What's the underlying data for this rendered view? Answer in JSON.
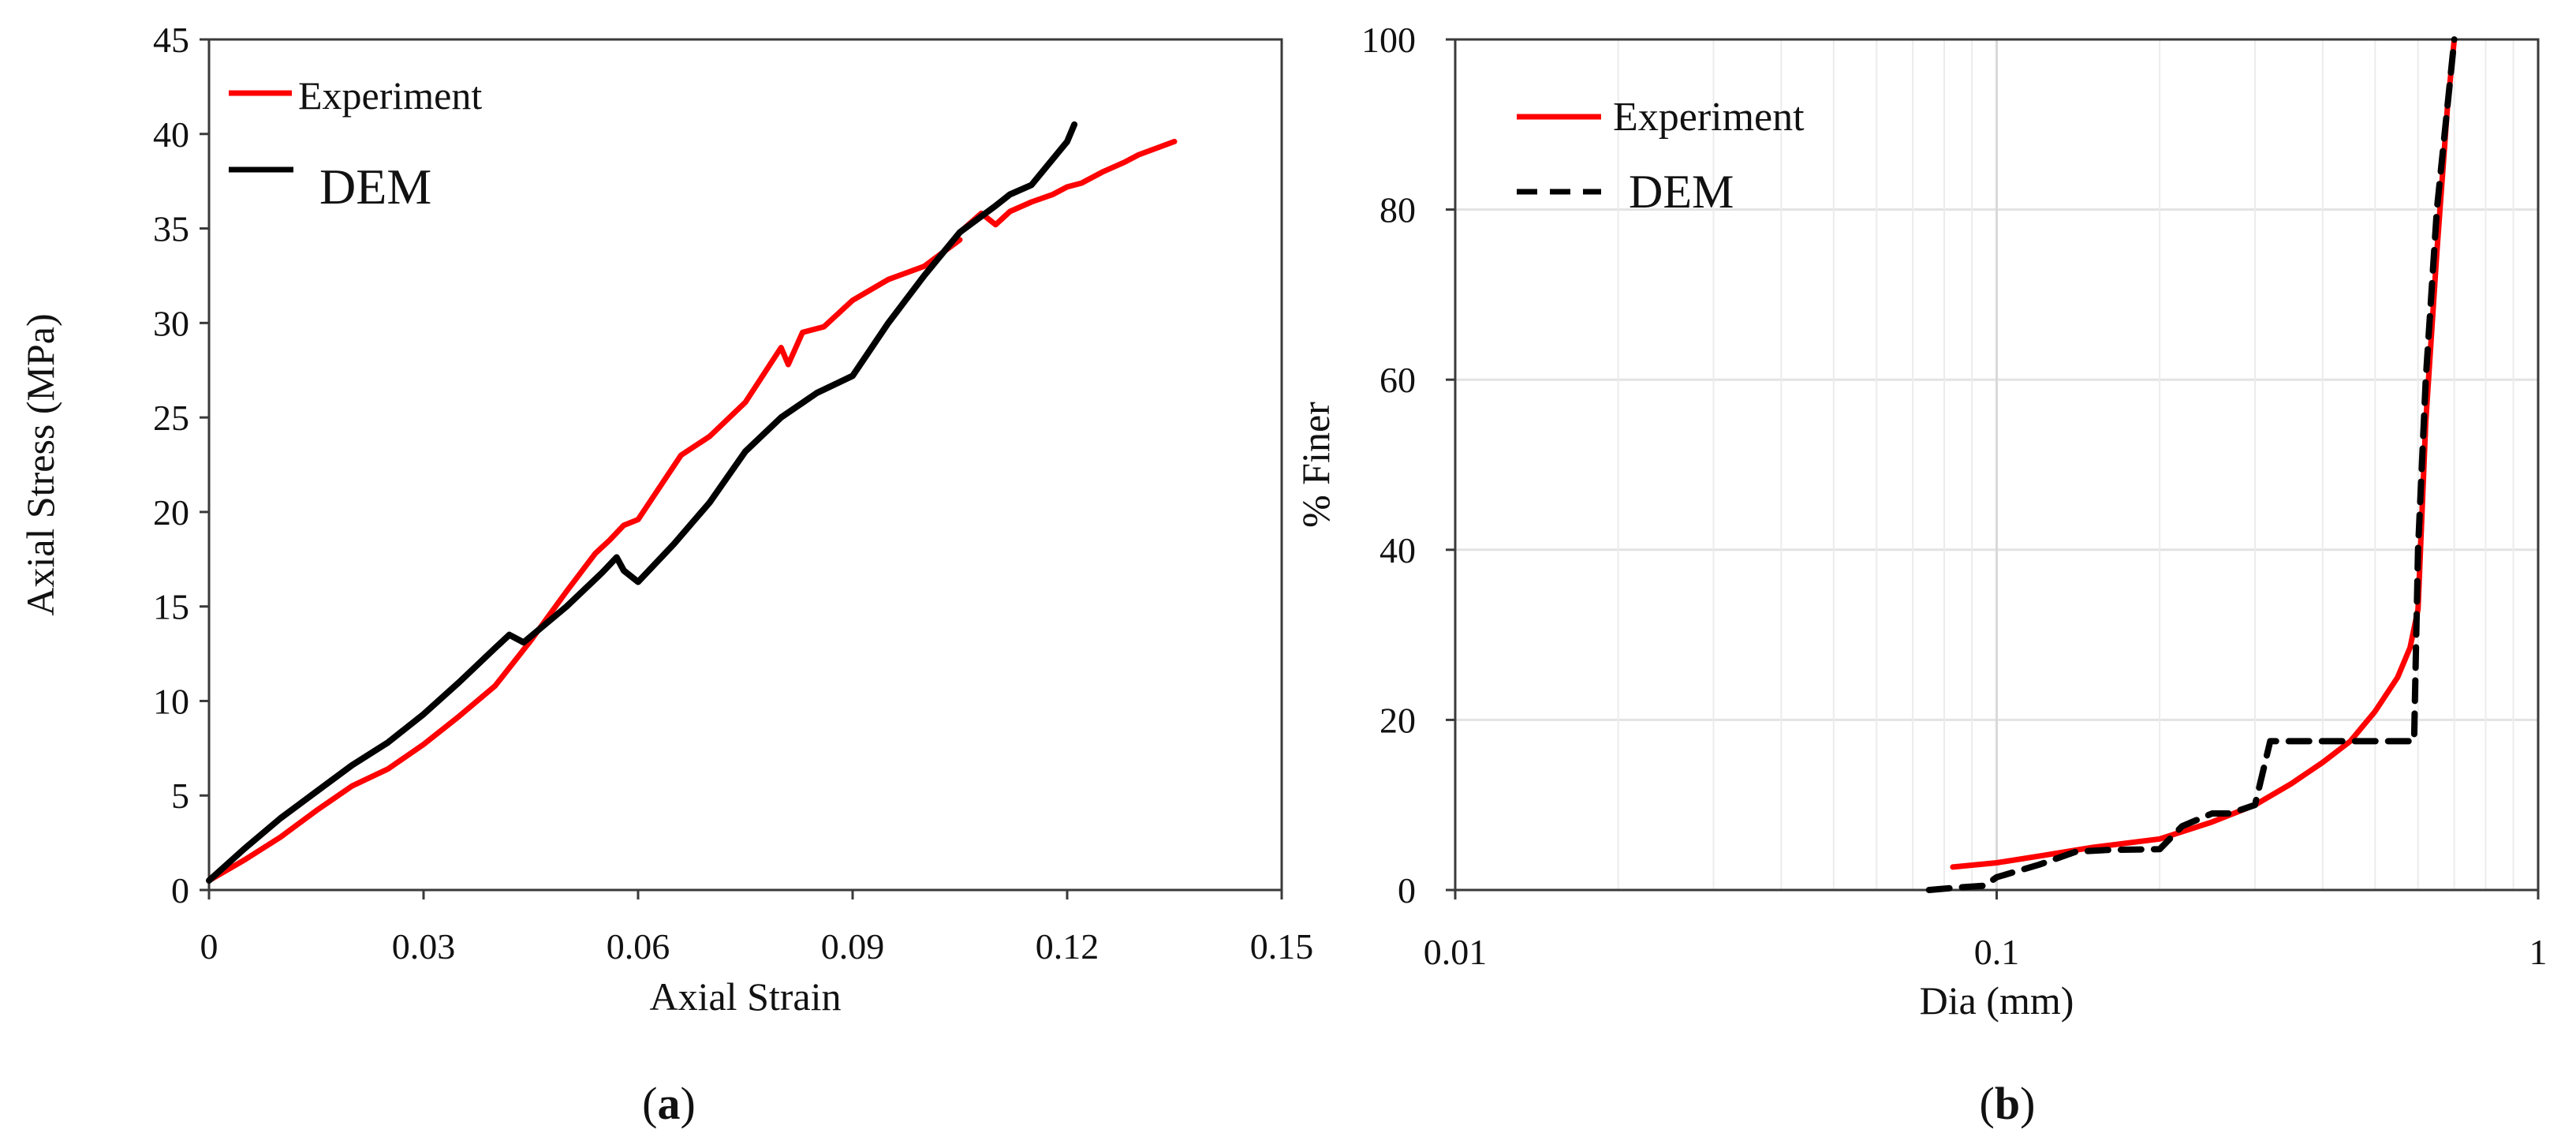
{
  "chart_data": [
    {
      "id": "a",
      "type": "line",
      "panel_label": "a",
      "xlabel": "Axial Strain",
      "ylabel": "Axial Stress (MPa)",
      "xlim": [
        0,
        0.15
      ],
      "ylim": [
        0,
        45
      ],
      "xticks": [
        0,
        0.03,
        0.06,
        0.09,
        0.12,
        0.15
      ],
      "xtick_labels": [
        "0",
        "0.03",
        "0.06",
        "0.09",
        "0.12",
        "0.15"
      ],
      "yticks": [
        0,
        5,
        10,
        15,
        20,
        25,
        30,
        35,
        40,
        45
      ],
      "ytick_labels": [
        "0",
        "5",
        "10",
        "15",
        "20",
        "25",
        "30",
        "35",
        "40",
        "45"
      ],
      "grid": false,
      "legend_position": "top-left",
      "series": [
        {
          "name": "Experiment",
          "color": "#ff0000",
          "style": "solid",
          "x": [
            0,
            0.005,
            0.01,
            0.015,
            0.02,
            0.025,
            0.03,
            0.035,
            0.04,
            0.045,
            0.05,
            0.054,
            0.056,
            0.058,
            0.06,
            0.063,
            0.066,
            0.07,
            0.075,
            0.08,
            0.081,
            0.083,
            0.086,
            0.09,
            0.095,
            0.1,
            0.105
          ],
          "y": [
            0.5,
            1.6,
            2.8,
            4.2,
            5.5,
            6.4,
            7.7,
            9.2,
            10.8,
            13.2,
            15.8,
            17.8,
            18.5,
            19.3,
            19.6,
            21.3,
            23.0,
            24.0,
            25.8,
            28.7,
            27.8,
            29.5,
            29.8,
            31.2,
            32.3,
            33.0,
            34.4
          ]
        },
        {
          "name": "Experiment",
          "color": "#ff0000",
          "style": "solid",
          "x": [
            0.105,
            0.108,
            0.11,
            0.112,
            0.115,
            0.118,
            0.12,
            0.122,
            0.125,
            0.128,
            0.13,
            0.135
          ],
          "y": [
            34.8,
            35.8,
            35.2,
            35.9,
            36.4,
            36.8,
            37.2,
            37.4,
            38.0,
            38.5,
            38.9,
            39.6
          ]
        },
        {
          "name": "DEM",
          "color": "#000000",
          "style": "solid",
          "x": [
            0,
            0.005,
            0.01,
            0.015,
            0.02,
            0.025,
            0.03,
            0.035,
            0.04,
            0.042,
            0.044,
            0.05,
            0.055,
            0.057,
            0.058,
            0.06,
            0.065,
            0.07,
            0.075,
            0.08,
            0.085,
            0.09,
            0.095,
            0.1,
            0.105,
            0.11,
            0.112,
            0.115,
            0.12,
            0.121
          ],
          "y": [
            0.5,
            2.2,
            3.8,
            5.2,
            6.6,
            7.8,
            9.3,
            11.0,
            12.8,
            13.5,
            13.1,
            15.0,
            16.8,
            17.6,
            16.9,
            16.3,
            18.3,
            20.5,
            23.2,
            25.0,
            26.3,
            27.2,
            30.0,
            32.5,
            34.8,
            36.2,
            36.8,
            37.3,
            39.6,
            40.5
          ]
        }
      ],
      "legend": [
        {
          "label": "Experiment",
          "color": "#ff0000",
          "style": "solid"
        },
        {
          "label": "DEM",
          "color": "#000000",
          "style": "solid"
        }
      ]
    },
    {
      "id": "b",
      "type": "line",
      "panel_label": "b",
      "xlabel": "Dia (mm)",
      "ylabel": "% Finer",
      "xscale": "log",
      "xlim": [
        0.01,
        1
      ],
      "ylim": [
        0,
        100
      ],
      "xticks": [
        0.01,
        0.1,
        1
      ],
      "xtick_labels": [
        "0.01",
        "0.1",
        "1"
      ],
      "yticks": [
        0,
        20,
        40,
        60,
        80,
        100
      ],
      "ytick_labels": [
        "0",
        "20",
        "40",
        "60",
        "80",
        "100"
      ],
      "grid": true,
      "legend_position": "top-left",
      "series": [
        {
          "name": "Experiment",
          "color": "#ff0000",
          "style": "solid",
          "x": [
            0.083,
            0.1,
            0.12,
            0.15,
            0.2,
            0.25,
            0.3,
            0.35,
            0.4,
            0.45,
            0.5,
            0.55,
            0.58,
            0.6,
            0.62,
            0.65,
            0.68,
            0.7
          ],
          "y": [
            2.7,
            3.2,
            4.0,
            5.0,
            6.0,
            8.0,
            10.0,
            12.5,
            15.0,
            17.5,
            21.0,
            25.0,
            28.5,
            33.0,
            55.0,
            75.0,
            92.0,
            100.0
          ]
        },
        {
          "name": "DEM",
          "color": "#000000",
          "style": "dashed",
          "x": [
            0.075,
            0.085,
            0.095,
            0.1,
            0.12,
            0.14,
            0.16,
            0.2,
            0.22,
            0.25,
            0.27,
            0.3,
            0.32,
            0.35,
            0.4,
            0.5,
            0.59,
            0.6,
            0.62,
            0.65,
            0.7
          ],
          "y": [
            0.0,
            0.3,
            0.5,
            1.5,
            3.0,
            4.5,
            4.7,
            4.8,
            7.5,
            9.0,
            9.0,
            10.0,
            17.5,
            17.5,
            17.5,
            17.5,
            17.5,
            40.0,
            60.0,
            80.0,
            100.0
          ]
        }
      ],
      "legend": [
        {
          "label": "Experiment",
          "color": "#ff0000",
          "style": "solid"
        },
        {
          "label": "DEM",
          "color": "#000000",
          "style": "dashed"
        }
      ]
    }
  ]
}
